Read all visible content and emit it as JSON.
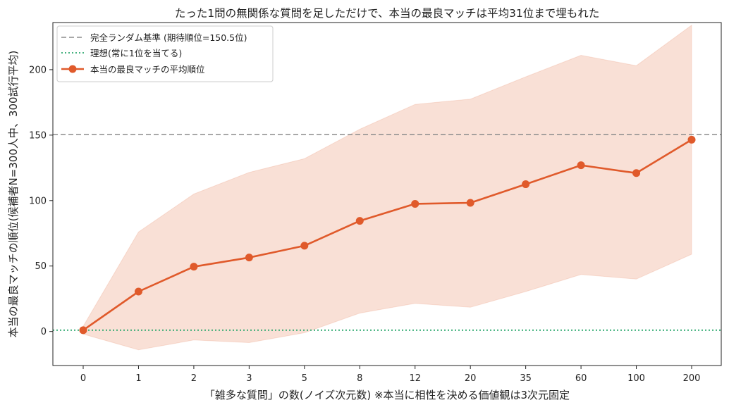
{
  "chart_data": {
    "type": "line",
    "title": "たった1問の無関係な質問を足しただけで、本当の最良マッチは平均31位まで埋もれた",
    "xlabel": "「雑多な質問」の数(ノイズ次元数)  ※本当に相性を決める価値観は3次元固定",
    "ylabel": "本当の最良マッチの順位(候補者N=300人中、300試行平均)",
    "categories": [
      "0",
      "1",
      "2",
      "3",
      "5",
      "8",
      "12",
      "20",
      "35",
      "60",
      "100",
      "200"
    ],
    "ylim": [
      -26,
      236
    ],
    "yticks": [
      0,
      50,
      100,
      150,
      200
    ],
    "grid": false,
    "legend_position": "top-left",
    "series": [
      {
        "name": "本当の最良マッチの平均順位",
        "values": [
          1,
          30.5,
          49.5,
          56.5,
          65.5,
          84.5,
          97.5,
          98.3,
          112.5,
          127,
          121,
          146.5
        ],
        "band_upper": [
          4,
          76,
          105,
          121.5,
          132,
          154.5,
          173.5,
          177.5,
          194.5,
          211,
          203,
          234
        ],
        "band_lower": [
          -2,
          -14,
          -6.5,
          -8.5,
          -1,
          14,
          21.5,
          18.5,
          30.5,
          43.5,
          40,
          59
        ],
        "color": "#e05a2b",
        "band_color": "#f7d5c8"
      }
    ],
    "reference_lines": [
      {
        "name": "完全ランダム基準 (期待順位=150.5位)",
        "y": 150.5,
        "color": "#8c8c8c",
        "style": "dashed"
      },
      {
        "name": "理想(常に1位を当てる)",
        "y": 1,
        "color": "#2ca86e",
        "style": "dotted"
      }
    ]
  }
}
